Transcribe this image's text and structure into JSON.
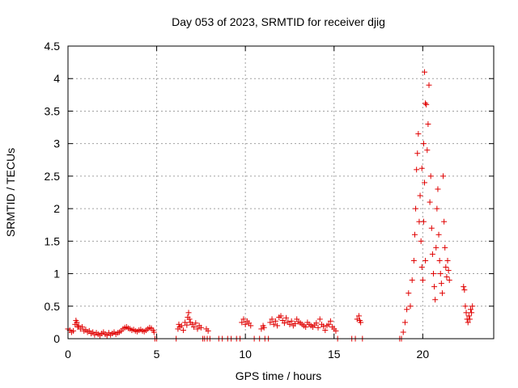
{
  "chart_data": {
    "type": "scatter",
    "title": "Day 053 of 2023, SRMTID for receiver djig",
    "xlabel": "GPS time / hours",
    "ylabel": "SRMTID / TECUs",
    "xlim": [
      0,
      24.0
    ],
    "ylim": [
      0,
      4.5
    ],
    "grid": true,
    "marker": "+",
    "marker_color": "#e00000",
    "x_ticks": [
      0,
      5,
      10,
      15,
      20
    ],
    "x_tick_labels": [
      "0",
      "5",
      "10",
      "15",
      "20"
    ],
    "y_ticks": [
      0,
      0.5,
      1,
      1.5,
      2,
      2.5,
      3,
      3.5,
      4,
      4.5
    ],
    "y_tick_labels": [
      "0",
      "0.5",
      "1",
      "1.5",
      "2",
      "2.5",
      "3",
      "3.5",
      "4",
      "4.5"
    ],
    "series": [
      {
        "name": "djig",
        "points": [
          [
            0.0,
            0.15
          ],
          [
            0.1,
            0.13
          ],
          [
            0.2,
            0.1
          ],
          [
            0.3,
            0.12
          ],
          [
            0.4,
            0.22
          ],
          [
            0.45,
            0.28
          ],
          [
            0.5,
            0.25
          ],
          [
            0.55,
            0.18
          ],
          [
            0.6,
            0.2
          ],
          [
            0.7,
            0.15
          ],
          [
            0.8,
            0.18
          ],
          [
            0.9,
            0.12
          ],
          [
            1.0,
            0.14
          ],
          [
            1.1,
            0.1
          ],
          [
            1.2,
            0.12
          ],
          [
            1.3,
            0.08
          ],
          [
            1.4,
            0.1
          ],
          [
            1.5,
            0.06
          ],
          [
            1.6,
            0.09
          ],
          [
            1.7,
            0.07
          ],
          [
            1.8,
            0.05
          ],
          [
            1.9,
            0.08
          ],
          [
            2.0,
            0.1
          ],
          [
            2.1,
            0.07
          ],
          [
            2.2,
            0.05
          ],
          [
            2.3,
            0.09
          ],
          [
            2.4,
            0.06
          ],
          [
            2.5,
            0.08
          ],
          [
            2.6,
            0.1
          ],
          [
            2.7,
            0.07
          ],
          [
            2.8,
            0.09
          ],
          [
            2.9,
            0.1
          ],
          [
            3.0,
            0.12
          ],
          [
            3.1,
            0.15
          ],
          [
            3.2,
            0.17
          ],
          [
            3.3,
            0.18
          ],
          [
            3.4,
            0.16
          ],
          [
            3.5,
            0.15
          ],
          [
            3.6,
            0.13
          ],
          [
            3.7,
            0.14
          ],
          [
            3.8,
            0.12
          ],
          [
            3.9,
            0.11
          ],
          [
            4.0,
            0.13
          ],
          [
            4.1,
            0.14
          ],
          [
            4.2,
            0.12
          ],
          [
            4.3,
            0.11
          ],
          [
            4.4,
            0.13
          ],
          [
            4.5,
            0.15
          ],
          [
            4.6,
            0.17
          ],
          [
            4.7,
            0.16
          ],
          [
            4.8,
            0.13
          ],
          [
            4.85,
            0.1
          ],
          [
            4.9,
            0.0
          ],
          [
            5.0,
            0.0
          ],
          [
            6.1,
            0.0
          ],
          [
            6.2,
            0.15
          ],
          [
            6.25,
            0.22
          ],
          [
            6.3,
            0.18
          ],
          [
            6.4,
            0.2
          ],
          [
            6.5,
            0.13
          ],
          [
            6.6,
            0.25
          ],
          [
            6.7,
            0.21
          ],
          [
            6.75,
            0.33
          ],
          [
            6.8,
            0.4
          ],
          [
            6.85,
            0.3
          ],
          [
            6.9,
            0.25
          ],
          [
            7.0,
            0.22
          ],
          [
            7.1,
            0.18
          ],
          [
            7.2,
            0.24
          ],
          [
            7.3,
            0.15
          ],
          [
            7.4,
            0.2
          ],
          [
            7.5,
            0.17
          ],
          [
            7.6,
            0.0
          ],
          [
            7.7,
            0.0
          ],
          [
            7.8,
            0.15
          ],
          [
            7.85,
            0.0
          ],
          [
            7.9,
            0.12
          ],
          [
            8.0,
            0.0
          ],
          [
            8.5,
            0.0
          ],
          [
            8.7,
            0.0
          ],
          [
            9.0,
            0.0
          ],
          [
            9.2,
            0.0
          ],
          [
            9.5,
            0.0
          ],
          [
            9.7,
            0.0
          ],
          [
            9.8,
            0.25
          ],
          [
            9.9,
            0.3
          ],
          [
            10.0,
            0.22
          ],
          [
            10.1,
            0.27
          ],
          [
            10.2,
            0.24
          ],
          [
            10.3,
            0.2
          ],
          [
            10.5,
            0.0
          ],
          [
            10.8,
            0.0
          ],
          [
            10.9,
            0.15
          ],
          [
            11.0,
            0.2
          ],
          [
            11.05,
            0.17
          ],
          [
            11.1,
            0.0
          ],
          [
            11.3,
            0.0
          ],
          [
            11.4,
            0.25
          ],
          [
            11.5,
            0.3
          ],
          [
            11.6,
            0.22
          ],
          [
            11.7,
            0.27
          ],
          [
            11.8,
            0.2
          ],
          [
            11.9,
            0.33
          ],
          [
            12.0,
            0.35
          ],
          [
            12.1,
            0.28
          ],
          [
            12.2,
            0.24
          ],
          [
            12.3,
            0.32
          ],
          [
            12.4,
            0.26
          ],
          [
            12.5,
            0.22
          ],
          [
            12.6,
            0.27
          ],
          [
            12.7,
            0.2
          ],
          [
            12.8,
            0.23
          ],
          [
            12.9,
            0.3
          ],
          [
            13.0,
            0.26
          ],
          [
            13.1,
            0.24
          ],
          [
            13.2,
            0.22
          ],
          [
            13.3,
            0.2
          ],
          [
            13.4,
            0.18
          ],
          [
            13.5,
            0.25
          ],
          [
            13.6,
            0.22
          ],
          [
            13.7,
            0.2
          ],
          [
            13.8,
            0.18
          ],
          [
            13.9,
            0.21
          ],
          [
            14.0,
            0.24
          ],
          [
            14.1,
            0.17
          ],
          [
            14.2,
            0.3
          ],
          [
            14.3,
            0.22
          ],
          [
            14.4,
            0.19
          ],
          [
            14.5,
            0.13
          ],
          [
            14.6,
            0.2
          ],
          [
            14.7,
            0.22
          ],
          [
            14.8,
            0.27
          ],
          [
            14.9,
            0.18
          ],
          [
            15.0,
            0.15
          ],
          [
            15.1,
            0.12
          ],
          [
            15.2,
            0.0
          ],
          [
            16.0,
            0.0
          ],
          [
            16.2,
            0.0
          ],
          [
            16.3,
            0.3
          ],
          [
            16.4,
            0.35
          ],
          [
            16.45,
            0.28
          ],
          [
            16.5,
            0.25
          ],
          [
            16.6,
            0.0
          ],
          [
            18.7,
            0.0
          ],
          [
            18.8,
            0.0
          ],
          [
            18.9,
            0.1
          ],
          [
            19.0,
            0.25
          ],
          [
            19.1,
            0.45
          ],
          [
            19.2,
            0.7
          ],
          [
            19.3,
            0.5
          ],
          [
            19.4,
            0.9
          ],
          [
            19.5,
            1.2
          ],
          [
            19.55,
            1.6
          ],
          [
            19.6,
            2.0
          ],
          [
            19.65,
            2.6
          ],
          [
            19.7,
            2.85
          ],
          [
            19.75,
            3.15
          ],
          [
            19.8,
            1.8
          ],
          [
            19.85,
            2.2
          ],
          [
            19.9,
            1.5
          ],
          [
            19.95,
            1.1
          ],
          [
            20.0,
            0.9
          ],
          [
            20.05,
            1.8
          ],
          [
            20.1,
            2.4
          ],
          [
            20.15,
            1.2
          ],
          [
            20.2,
            3.6
          ],
          [
            20.25,
            2.9
          ],
          [
            20.3,
            3.3
          ],
          [
            20.35,
            3.9
          ],
          [
            20.4,
            2.1
          ],
          [
            20.45,
            2.5
          ],
          [
            20.5,
            1.7
          ],
          [
            20.55,
            1.3
          ],
          [
            20.6,
            1.0
          ],
          [
            20.65,
            0.8
          ],
          [
            20.7,
            0.6
          ],
          [
            20.75,
            1.4
          ],
          [
            20.8,
            2.0
          ],
          [
            20.85,
            2.3
          ],
          [
            20.9,
            1.6
          ],
          [
            20.95,
            1.2
          ],
          [
            21.0,
            1.0
          ],
          [
            21.05,
            0.85
          ],
          [
            21.1,
            0.7
          ],
          [
            21.15,
            2.5
          ],
          [
            21.2,
            1.8
          ],
          [
            21.25,
            1.4
          ],
          [
            21.3,
            1.1
          ],
          [
            21.35,
            0.95
          ],
          [
            21.4,
            1.2
          ],
          [
            21.45,
            1.05
          ],
          [
            21.5,
            0.9
          ],
          [
            20.1,
            4.1
          ],
          [
            20.15,
            3.62
          ],
          [
            20.05,
            3.0
          ],
          [
            19.95,
            2.62
          ],
          [
            22.3,
            0.8
          ],
          [
            22.35,
            0.75
          ],
          [
            22.4,
            0.5
          ],
          [
            22.45,
            0.4
          ],
          [
            22.5,
            0.3
          ],
          [
            22.55,
            0.25
          ],
          [
            22.6,
            0.35
          ],
          [
            22.65,
            0.3
          ],
          [
            22.7,
            0.45
          ],
          [
            22.75,
            0.4
          ],
          [
            22.8,
            0.5
          ]
        ]
      }
    ]
  }
}
